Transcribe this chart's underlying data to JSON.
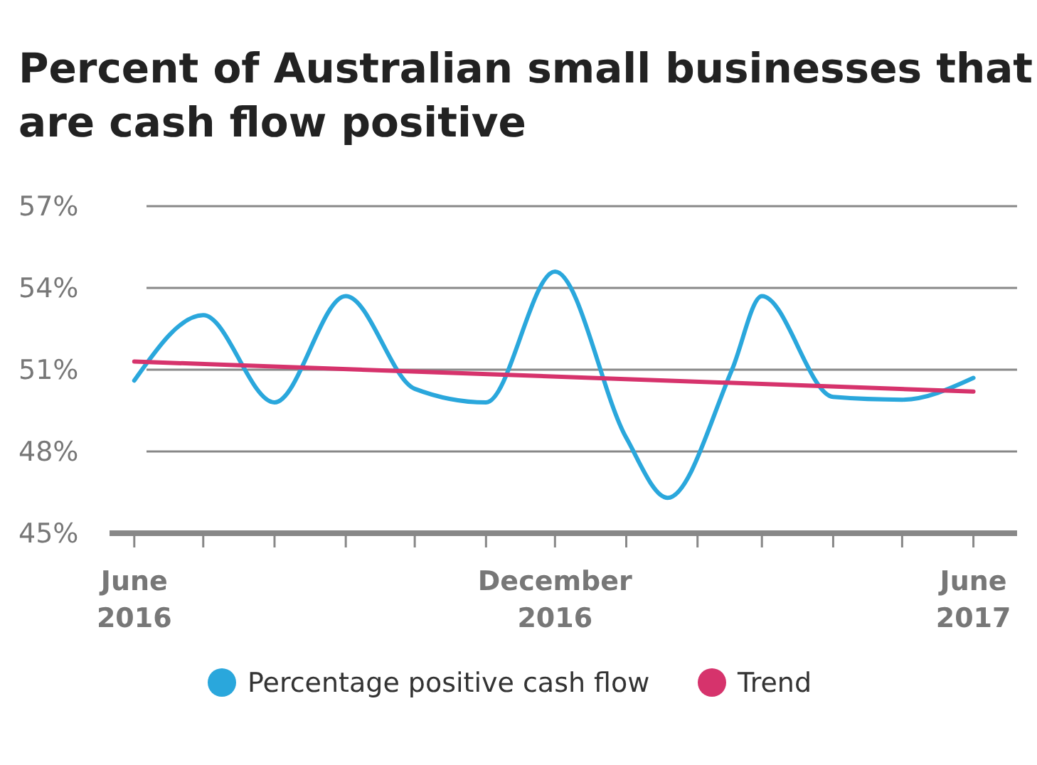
{
  "chart_data": {
    "type": "line",
    "title": "Percent of Australian small businesses that are cash flow positive",
    "x": [
      "2016-06-01",
      "2016-07-01",
      "2016-08-01",
      "2016-09-01",
      "2016-10-01",
      "2016-11-01",
      "2016-12-01",
      "2017-01-01",
      "2017-01-19",
      "2017-02-16",
      "2017-03-01",
      "2017-04-01",
      "2017-05-01",
      "2017-06-01"
    ],
    "series": [
      {
        "name": "Percentage positive cash flow",
        "color": "#2aa7dc",
        "values": [
          50.6,
          53.0,
          49.8,
          53.7,
          50.3,
          49.8,
          54.6,
          48.5,
          46.3,
          51.0,
          53.7,
          50.0,
          49.9,
          50.7
        ]
      },
      {
        "name": "Trend",
        "color": "#d6336c",
        "x": [
          "2016-06-01",
          "2017-06-01"
        ],
        "values": [
          51.3,
          50.2
        ]
      }
    ],
    "ylim": [
      45,
      57
    ],
    "yticks": [
      {
        "value": 45,
        "label": "45%"
      },
      {
        "value": 48,
        "label": "48%"
      },
      {
        "value": 51,
        "label": "51%"
      },
      {
        "value": 54,
        "label": "54%"
      },
      {
        "value": 57,
        "label": "57%"
      }
    ],
    "xlim": [
      "2016-05-20",
      "2017-06-20"
    ],
    "xticks": [
      {
        "value": "2016-06-01",
        "label": "June\n2016"
      },
      {
        "value": "2016-07-01",
        "label": null
      },
      {
        "value": "2016-08-01",
        "label": null
      },
      {
        "value": "2016-09-01",
        "label": null
      },
      {
        "value": "2016-10-01",
        "label": null
      },
      {
        "value": "2016-11-01",
        "label": null
      },
      {
        "value": "2016-12-01",
        "label": "December\n2016"
      },
      {
        "value": "2017-01-01",
        "label": null
      },
      {
        "value": "2017-02-01",
        "label": null
      },
      {
        "value": "2017-03-01",
        "label": null
      },
      {
        "value": "2017-04-01",
        "label": null
      },
      {
        "value": "2017-05-01",
        "label": null
      },
      {
        "value": "2017-06-01",
        "label": "June\n2017"
      }
    ],
    "grid": "y",
    "legend": "bottom",
    "marker": "none",
    "line_style": "solid"
  }
}
